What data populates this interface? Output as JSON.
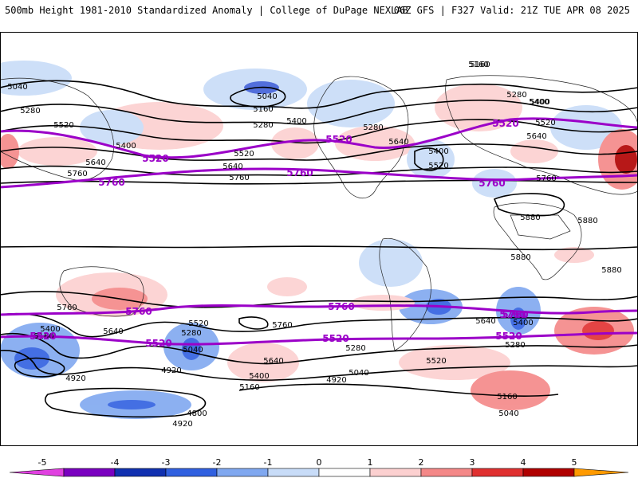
{
  "header": {
    "left": "500mb Height 1981-2010 Standardized Anomaly | College of DuPage NEXLAB",
    "right": "06Z GFS | F327 Valid: 21Z TUE APR 08 2025"
  },
  "colors": {
    "border": "#000000",
    "land_outline": "#222222",
    "contour": "#000000",
    "highlight_contour": "#9b00c8",
    "anomaly_scale": [
      "#e040e0",
      "#7a00c0",
      "#1030b0",
      "#3060e0",
      "#80a8f0",
      "#c8dcf8",
      "#ffffff",
      "#fcd0d0",
      "#f48888",
      "#e03030",
      "#b00000",
      "#ff9a00"
    ]
  },
  "contour_labels": [
    {
      "text": "5040"
    },
    {
      "text": "5280"
    },
    {
      "text": "5520"
    },
    {
      "text": "5640"
    },
    {
      "text": "5400"
    },
    {
      "text": "5760"
    },
    {
      "text": "5160"
    },
    {
      "text": "5040"
    },
    {
      "text": "5160"
    },
    {
      "text": "5280"
    },
    {
      "text": "5400"
    },
    {
      "text": "5520"
    },
    {
      "text": "5640"
    },
    {
      "text": "5760"
    },
    {
      "text": "5280"
    },
    {
      "text": "5400"
    },
    {
      "text": "5640"
    },
    {
      "text": "5520"
    },
    {
      "text": "5400"
    },
    {
      "text": "5160"
    },
    {
      "text": "5280"
    },
    {
      "text": "5400"
    },
    {
      "text": "5520"
    },
    {
      "text": "5640"
    },
    {
      "text": "5760"
    },
    {
      "text": "5880"
    },
    {
      "text": "5880"
    },
    {
      "text": "5880"
    },
    {
      "text": "5880"
    },
    {
      "text": "5760"
    },
    {
      "text": "5640"
    },
    {
      "text": "5400"
    },
    {
      "text": "5160"
    },
    {
      "text": "4920"
    },
    {
      "text": "5520"
    },
    {
      "text": "5280"
    },
    {
      "text": "5040"
    },
    {
      "text": "4920"
    },
    {
      "text": "5760"
    },
    {
      "text": "5640"
    },
    {
      "text": "5400"
    },
    {
      "text": "5160"
    },
    {
      "text": "4920"
    },
    {
      "text": "5040"
    },
    {
      "text": "5280"
    },
    {
      "text": "5520"
    },
    {
      "text": "5640"
    },
    {
      "text": "5400"
    },
    {
      "text": "5280"
    },
    {
      "text": "5160"
    },
    {
      "text": "5040"
    },
    {
      "text": "4800"
    },
    {
      "text": "4920"
    }
  ],
  "highlight_labels": [
    {
      "text": "5520"
    },
    {
      "text": "5760"
    },
    {
      "text": "5520"
    },
    {
      "text": "5520"
    },
    {
      "text": "5760"
    },
    {
      "text": "5760"
    },
    {
      "text": "5760"
    },
    {
      "text": "5760"
    },
    {
      "text": "5520"
    },
    {
      "text": "5520"
    },
    {
      "text": "5520"
    },
    {
      "text": "5520"
    },
    {
      "text": "5760"
    },
    {
      "text": "5760"
    }
  ],
  "colorbar": {
    "tick_labels": [
      "-5",
      "-4",
      "-3",
      "-2",
      "-1",
      "0",
      "1",
      "2",
      "3",
      "4",
      "5"
    ]
  }
}
